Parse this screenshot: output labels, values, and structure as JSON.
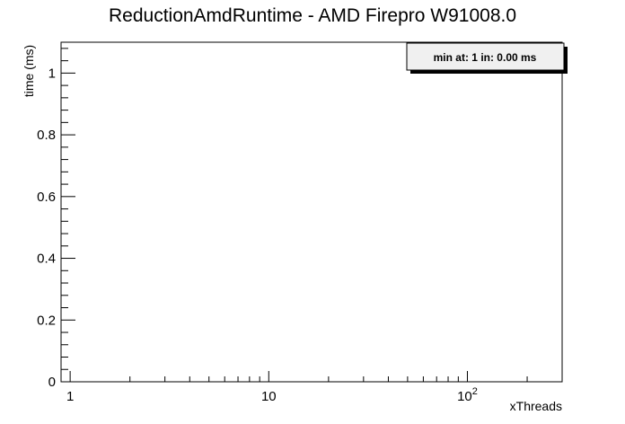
{
  "chart_data": {
    "type": "line",
    "title": "ReductionAmdRuntime - AMD Firepro W91008.0",
    "xlabel": "xThreads",
    "ylabel": "time (ms)",
    "x_scale": "log",
    "xlim": [
      0.9,
      300
    ],
    "ylim": [
      0,
      1.1
    ],
    "x_ticks": [
      {
        "value": 1,
        "label": "1"
      },
      {
        "value": 10,
        "label": "10"
      },
      {
        "value": 100,
        "label": "10",
        "exponent": "2"
      }
    ],
    "y_ticks": [
      {
        "value": 0,
        "label": "0"
      },
      {
        "value": 0.2,
        "label": "0.2"
      },
      {
        "value": 0.4,
        "label": "0.4"
      },
      {
        "value": 0.6,
        "label": "0.6"
      },
      {
        "value": 0.8,
        "label": "0.8"
      },
      {
        "value": 1,
        "label": "1"
      }
    ],
    "series": [],
    "grid": false,
    "stats_box": {
      "text": "min at: 1 in: 0.00 ms",
      "position": "top-right"
    }
  }
}
